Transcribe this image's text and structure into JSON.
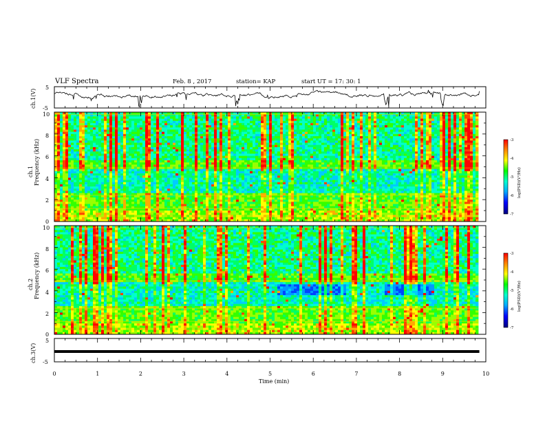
{
  "header": {
    "title": "VLF Spectra",
    "date": "Feb. 8 , 2017",
    "station": "station= KAP",
    "start": "start  UT =   17: 30: 1"
  },
  "colorbar": {
    "label": "log(PSD)(V²/Hz)",
    "ticks": [
      "-3",
      "-4",
      "-5",
      "-6",
      "-7"
    ],
    "colors": [
      "#ff0000",
      "#ffaa00",
      "#ffff00",
      "#00ff00",
      "#00ffcc",
      "#00aaff",
      "#0000ff",
      "#000080"
    ]
  },
  "chart_data": [
    {
      "type": "line",
      "panel": "ch1-waveform",
      "ylabel": "ch.1(V)",
      "ylim": [
        -5,
        5
      ],
      "ytick_labels": [
        "5",
        "-5"
      ],
      "xlim": [
        0,
        10
      ],
      "series": [
        {
          "values_approx": "noisy trace around 0 to 2 V, dips near 2.0, 4.2, 7.7, 9.0 min"
        }
      ]
    },
    {
      "type": "heatmap",
      "panel": "ch1-spectrogram",
      "ylabel": "ch.1\nFrequency (kHz)",
      "ylim": [
        0,
        10
      ],
      "ytick_labels": [
        "0",
        "2",
        "4",
        "6",
        "8",
        "10"
      ],
      "xlim": [
        0,
        9.85
      ],
      "z_range": [
        -7,
        -3
      ],
      "z_label": "log(PSD)(V²/Hz)"
    },
    {
      "type": "heatmap",
      "panel": "ch2-spectrogram",
      "ylabel": "ch.2\nFrequency (kHz)",
      "ylim": [
        0,
        10
      ],
      "ytick_labels": [
        "0",
        "2",
        "4",
        "6",
        "8",
        "10"
      ],
      "xlim": [
        0,
        9.85
      ],
      "z_range": [
        -7,
        -3
      ],
      "z_label": "log(PSD)(V²/Hz)"
    },
    {
      "type": "line",
      "panel": "ch3-waveform",
      "ylabel": "ch.3(V)",
      "ylim": [
        -5,
        5
      ],
      "ytick_labels": [
        "5",
        "-5"
      ],
      "xlim": [
        0,
        10
      ],
      "series": [
        {
          "values_approx": "constant near -2 V"
        }
      ]
    }
  ],
  "xaxis": {
    "label": "Time (min)",
    "ticks": [
      "0",
      "1",
      "2",
      "3",
      "4",
      "5",
      "6",
      "7",
      "8",
      "9",
      "10"
    ]
  }
}
